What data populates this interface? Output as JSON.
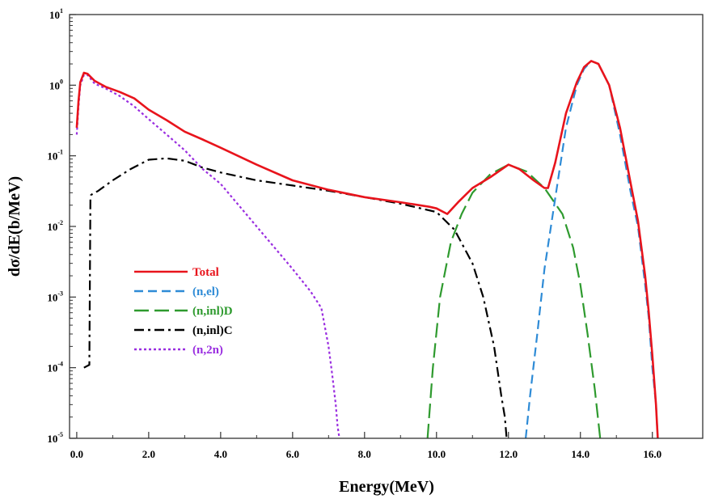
{
  "chart_data": {
    "type": "line",
    "title": "",
    "xlabel": "Energy(MeV)",
    "ylabel": "dσ/dE(b/MeV)",
    "xlim": [
      -0.2,
      17.4
    ],
    "ylim": [
      1e-05,
      10
    ],
    "yscale": "log",
    "x_ticks": [
      0,
      2,
      4,
      6,
      8,
      10,
      12,
      14,
      16
    ],
    "x_tick_labels": [
      "0.0",
      "2.0",
      "4.0",
      "6.0",
      "8.0",
      "10.0",
      "12.0",
      "14.0",
      "16.0"
    ],
    "y_ticks": [
      1e-05,
      0.0001,
      0.001,
      0.01,
      0.1,
      1,
      10
    ],
    "y_tick_labels": [
      {
        "base": "10",
        "exp": "-5"
      },
      {
        "base": "10",
        "exp": "-4"
      },
      {
        "base": "10",
        "exp": "-3"
      },
      {
        "base": "10",
        "exp": "-2"
      },
      {
        "base": "10",
        "exp": "-1"
      },
      {
        "base": "10",
        "exp": "0"
      },
      {
        "base": "10",
        "exp": "1"
      }
    ],
    "grid": false,
    "legend_position": "lower-left",
    "series": [
      {
        "name": "Total",
        "color": "#e8141c",
        "dash": "solid",
        "x": [
          0.0,
          0.05,
          0.1,
          0.2,
          0.3,
          0.5,
          0.8,
          1.2,
          1.6,
          2.0,
          2.5,
          3.0,
          3.5,
          4.0,
          5.0,
          6.0,
          7.0,
          8.0,
          9.0,
          9.8,
          10.0,
          10.3,
          10.6,
          11.0,
          11.5,
          12.0,
          12.3,
          12.7,
          13.0,
          13.1,
          13.3,
          13.6,
          13.9,
          14.1,
          14.3,
          14.5,
          14.8,
          15.1,
          15.4,
          15.6,
          15.8,
          15.9,
          16.0,
          16.1,
          16.15
        ],
        "y": [
          0.25,
          0.6,
          1.1,
          1.5,
          1.45,
          1.15,
          0.95,
          0.8,
          0.65,
          0.45,
          0.32,
          0.22,
          0.17,
          0.13,
          0.075,
          0.045,
          0.033,
          0.026,
          0.022,
          0.019,
          0.018,
          0.015,
          0.022,
          0.035,
          0.05,
          0.075,
          0.065,
          0.045,
          0.035,
          0.035,
          0.08,
          0.4,
          1.1,
          1.8,
          2.2,
          2.0,
          1.0,
          0.25,
          0.04,
          0.012,
          0.002,
          0.0006,
          0.00015,
          3e-05,
          1e-05
        ]
      },
      {
        "name": "(n,el)",
        "color": "#2e8bd6",
        "dash": "dashed",
        "x": [
          12.48,
          12.6,
          12.8,
          13.0,
          13.3,
          13.6,
          13.9,
          14.1,
          14.3,
          14.5,
          14.8,
          15.1,
          15.4,
          15.6,
          15.8,
          15.9,
          16.0,
          16.1,
          16.15
        ],
        "y": [
          1e-05,
          4e-05,
          0.0003,
          0.0025,
          0.025,
          0.25,
          1.0,
          1.7,
          2.2,
          2.0,
          1.0,
          0.2,
          0.03,
          0.01,
          0.0015,
          0.0005,
          0.0001,
          3e-05,
          1e-05
        ]
      },
      {
        "name": "(n,inl)D",
        "color": "#2e9a2e",
        "dash": "long-dashed",
        "x": [
          9.75,
          9.9,
          10.1,
          10.4,
          10.7,
          11.0,
          11.5,
          12.0,
          12.5,
          13.0,
          13.5,
          13.8,
          14.0,
          14.2,
          14.4,
          14.55
        ],
        "y": [
          1e-05,
          0.0001,
          0.001,
          0.006,
          0.015,
          0.03,
          0.055,
          0.075,
          0.06,
          0.035,
          0.015,
          0.005,
          0.0015,
          0.0003,
          5e-05,
          1e-05
        ]
      },
      {
        "name": "(n,inl)C",
        "color": "#000000",
        "dash": "dash-dot",
        "x": [
          0.2,
          0.35,
          0.38,
          0.4,
          0.6,
          1.0,
          1.5,
          2.0,
          2.5,
          3.0,
          3.5,
          4.0,
          5.0,
          6.0,
          7.0,
          8.0,
          9.0,
          10.0,
          10.5,
          11.0,
          11.3,
          11.6,
          11.8,
          11.9,
          11.95
        ],
        "y": [
          0.0001,
          0.00011,
          0.025,
          0.028,
          0.032,
          0.045,
          0.065,
          0.088,
          0.092,
          0.085,
          0.068,
          0.058,
          0.045,
          0.038,
          0.032,
          0.026,
          0.021,
          0.016,
          0.009,
          0.003,
          0.001,
          0.0002,
          4e-05,
          2e-05,
          1e-05
        ]
      },
      {
        "name": "(n,2n)",
        "color": "#9a2ee0",
        "dash": "dotted",
        "x": [
          0.0,
          0.05,
          0.1,
          0.2,
          0.3,
          0.5,
          0.8,
          1.2,
          1.6,
          2.0,
          2.5,
          3.0,
          3.5,
          4.0,
          4.5,
          5.0,
          5.5,
          6.0,
          6.5,
          6.8,
          7.0,
          7.1,
          7.2,
          7.25,
          7.3
        ],
        "y": [
          0.2,
          0.5,
          1.0,
          1.4,
          1.4,
          1.05,
          0.9,
          0.7,
          0.5,
          0.33,
          0.2,
          0.12,
          0.065,
          0.04,
          0.02,
          0.01,
          0.005,
          0.0025,
          0.0012,
          0.0007,
          0.0002,
          8e-05,
          3e-05,
          1.5e-05,
          1e-05
        ]
      }
    ]
  }
}
